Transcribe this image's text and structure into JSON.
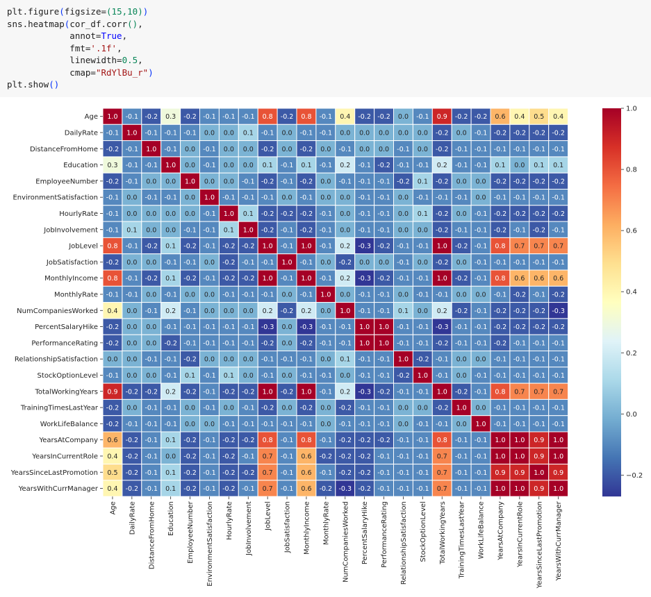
{
  "code": {
    "lines": [
      [
        {
          "t": "plt.figure"
        },
        {
          "t": "(",
          "c": "paren"
        },
        {
          "t": "figsize="
        },
        {
          "t": "(",
          "c": "num"
        },
        {
          "t": "15",
          "c": "num"
        },
        {
          "t": ",",
          "c": "num"
        },
        {
          "t": "10",
          "c": "num"
        },
        {
          "t": ")",
          "c": "num"
        },
        {
          "t": ")",
          "c": "paren"
        }
      ],
      [
        {
          "t": "sns.heatmap"
        },
        {
          "t": "(",
          "c": "paren"
        },
        {
          "t": "cor_df.corr"
        },
        {
          "t": "()",
          "c": "num"
        },
        {
          "t": ","
        }
      ],
      [
        {
          "t": "            annot="
        },
        {
          "t": "True",
          "c": "kw"
        },
        {
          "t": ","
        }
      ],
      [
        {
          "t": "            fmt="
        },
        {
          "t": "'.1f'",
          "c": "str"
        },
        {
          "t": ","
        }
      ],
      [
        {
          "t": "            linewidth="
        },
        {
          "t": "0.5",
          "c": "num"
        },
        {
          "t": ","
        }
      ],
      [
        {
          "t": "            cmap="
        },
        {
          "t": "\"RdYlBu_r\"",
          "c": "str"
        },
        {
          "t": ")",
          "c": "paren"
        }
      ],
      [
        {
          "t": "plt.show"
        },
        {
          "t": "()",
          "c": "paren"
        }
      ]
    ]
  },
  "chart_data": {
    "type": "heatmap",
    "title": "",
    "cmap": "RdYlBu_r",
    "annot_format": ".1f",
    "labels": [
      "Age",
      "DailyRate",
      "DistanceFromHome",
      "Education",
      "EmployeeNumber",
      "EnvironmentSatisfaction",
      "HourlyRate",
      "JobInvolvement",
      "JobLevel",
      "JobSatisfaction",
      "MonthlyIncome",
      "MonthlyRate",
      "NumCompaniesWorked",
      "PercentSalaryHike",
      "PerformanceRating",
      "RelationshipSatisfaction",
      "StockOptionLevel",
      "TotalWorkingYears",
      "TrainingTimesLastYear",
      "WorkLifeBalance",
      "YearsAtCompany",
      "YearsInCurrentRole",
      "YearsSinceLastPromotion",
      "YearsWithCurrManager"
    ],
    "values": [
      [
        1.0,
        -0.1,
        -0.2,
        0.3,
        -0.2,
        -0.1,
        -0.1,
        -0.1,
        0.8,
        -0.2,
        0.8,
        -0.1,
        0.4,
        -0.2,
        -0.2,
        -0.0,
        -0.1,
        0.9,
        -0.2,
        -0.2,
        0.6,
        0.4,
        0.5,
        0.4
      ],
      [
        -0.1,
        1.0,
        -0.1,
        -0.1,
        -0.1,
        -0.0,
        0.0,
        0.1,
        -0.1,
        0.0,
        -0.1,
        -0.1,
        0.0,
        -0.0,
        -0.0,
        -0.0,
        0.0,
        -0.2,
        -0.0,
        -0.1,
        -0.2,
        -0.2,
        -0.2,
        -0.2
      ],
      [
        -0.2,
        -0.1,
        1.0,
        -0.1,
        0.0,
        -0.1,
        0.0,
        -0.0,
        -0.2,
        -0.0,
        -0.2,
        0.0,
        -0.1,
        0.0,
        0.0,
        -0.1,
        0.0,
        -0.2,
        -0.1,
        -0.1,
        -0.1,
        -0.1,
        -0.1,
        -0.1
      ],
      [
        0.3,
        -0.1,
        -0.1,
        1.0,
        0.0,
        -0.1,
        -0.0,
        0.0,
        0.1,
        -0.1,
        0.1,
        -0.1,
        0.2,
        -0.1,
        -0.2,
        -0.1,
        -0.1,
        0.2,
        -0.1,
        -0.1,
        0.1,
        0.0,
        0.1,
        0.1
      ],
      [
        -0.2,
        -0.1,
        0.0,
        0.0,
        1.0,
        -0.0,
        0.0,
        -0.1,
        -0.2,
        -0.1,
        -0.2,
        -0.0,
        -0.1,
        -0.1,
        -0.1,
        -0.2,
        0.1,
        -0.2,
        0.0,
        -0.0,
        -0.2,
        -0.2,
        -0.2,
        -0.2
      ],
      [
        -0.1,
        -0.0,
        -0.1,
        -0.1,
        -0.0,
        1.0,
        -0.1,
        -0.1,
        -0.1,
        -0.0,
        -0.1,
        0.0,
        -0.0,
        -0.1,
        -0.1,
        -0.0,
        -0.1,
        -0.1,
        -0.1,
        0.0,
        -0.1,
        -0.1,
        -0.1,
        -0.1
      ],
      [
        -0.1,
        0.0,
        0.0,
        -0.0,
        0.0,
        -0.1,
        1.0,
        0.1,
        -0.2,
        -0.2,
        -0.2,
        -0.1,
        -0.0,
        -0.1,
        -0.1,
        -0.0,
        0.1,
        -0.2,
        -0.0,
        -0.1,
        -0.2,
        -0.2,
        -0.2,
        -0.2
      ],
      [
        -0.1,
        0.1,
        -0.0,
        0.0,
        -0.1,
        -0.1,
        0.1,
        1.0,
        -0.2,
        -0.1,
        -0.2,
        -0.1,
        -0.0,
        -0.1,
        -0.1,
        0.0,
        -0.0,
        -0.2,
        -0.1,
        -0.1,
        -0.2,
        -0.1,
        -0.2,
        -0.1
      ],
      [
        0.8,
        -0.1,
        -0.2,
        0.1,
        -0.2,
        -0.1,
        -0.2,
        -0.2,
        1.0,
        -0.1,
        1.0,
        -0.1,
        0.2,
        -0.3,
        -0.2,
        -0.1,
        -0.1,
        1.0,
        -0.2,
        -0.1,
        0.8,
        0.7,
        0.7,
        0.7
      ],
      [
        -0.2,
        0.0,
        -0.0,
        -0.1,
        -0.1,
        -0.0,
        -0.2,
        -0.1,
        -0.1,
        1.0,
        -0.1,
        -0.0,
        -0.2,
        -0.0,
        -0.0,
        -0.1,
        -0.0,
        -0.2,
        -0.0,
        -0.1,
        -0.1,
        -0.1,
        -0.1,
        -0.1
      ],
      [
        0.8,
        -0.1,
        -0.2,
        0.1,
        -0.2,
        -0.1,
        -0.2,
        -0.2,
        1.0,
        -0.1,
        1.0,
        -0.1,
        0.2,
        -0.3,
        -0.2,
        -0.1,
        -0.1,
        1.0,
        -0.2,
        -0.1,
        0.8,
        0.6,
        0.6,
        0.6
      ],
      [
        -0.1,
        -0.1,
        0.0,
        -0.1,
        -0.0,
        0.0,
        -0.1,
        -0.1,
        -0.1,
        -0.0,
        -0.1,
        1.0,
        -0.0,
        -0.1,
        -0.1,
        -0.0,
        -0.1,
        -0.1,
        -0.0,
        -0.0,
        -0.1,
        -0.2,
        -0.1,
        -0.2
      ],
      [
        0.4,
        0.0,
        -0.1,
        0.2,
        -0.1,
        -0.0,
        -0.0,
        -0.0,
        0.2,
        -0.2,
        0.2,
        -0.0,
        1.0,
        -0.1,
        -0.1,
        0.1,
        -0.0,
        0.2,
        -0.2,
        -0.1,
        -0.2,
        -0.2,
        -0.2,
        -0.3
      ],
      [
        -0.2,
        -0.0,
        0.0,
        -0.1,
        -0.1,
        -0.1,
        -0.1,
        -0.1,
        -0.3,
        -0.0,
        -0.3,
        -0.1,
        -0.1,
        1.0,
        1.0,
        -0.1,
        -0.1,
        -0.3,
        -0.1,
        -0.1,
        -0.2,
        -0.2,
        -0.2,
        -0.2
      ],
      [
        -0.2,
        -0.0,
        0.0,
        -0.2,
        -0.1,
        -0.1,
        -0.1,
        -0.1,
        -0.2,
        -0.0,
        -0.2,
        -0.1,
        -0.1,
        1.0,
        1.0,
        -0.1,
        -0.1,
        -0.2,
        -0.1,
        -0.1,
        -0.2,
        -0.1,
        -0.1,
        -0.1
      ],
      [
        -0.0,
        -0.0,
        -0.1,
        -0.1,
        -0.2,
        -0.0,
        -0.0,
        0.0,
        -0.1,
        -0.1,
        -0.1,
        -0.0,
        0.1,
        -0.1,
        -0.1,
        1.0,
        -0.2,
        -0.1,
        -0.0,
        -0.0,
        -0.1,
        -0.1,
        -0.1,
        -0.1
      ],
      [
        -0.1,
        0.0,
        0.0,
        -0.1,
        0.1,
        -0.1,
        0.1,
        -0.0,
        -0.1,
        -0.0,
        -0.1,
        -0.1,
        -0.0,
        -0.1,
        -0.1,
        -0.2,
        1.0,
        -0.1,
        -0.0,
        -0.1,
        -0.1,
        -0.1,
        -0.1,
        -0.1
      ],
      [
        0.9,
        -0.2,
        -0.2,
        0.2,
        -0.2,
        -0.1,
        -0.2,
        -0.2,
        1.0,
        -0.2,
        1.0,
        -0.1,
        0.2,
        -0.3,
        -0.2,
        -0.1,
        -0.1,
        1.0,
        -0.2,
        -0.1,
        0.8,
        0.7,
        0.7,
        0.7
      ],
      [
        -0.2,
        -0.0,
        -0.1,
        -0.1,
        0.0,
        -0.1,
        -0.0,
        -0.1,
        -0.2,
        -0.0,
        -0.2,
        -0.0,
        -0.2,
        -0.1,
        -0.1,
        -0.0,
        -0.0,
        -0.2,
        1.0,
        0.0,
        -0.1,
        -0.1,
        -0.1,
        -0.1
      ],
      [
        -0.2,
        -0.1,
        -0.1,
        -0.1,
        -0.0,
        0.0,
        -0.1,
        -0.1,
        -0.1,
        -0.1,
        -0.1,
        -0.0,
        -0.1,
        -0.1,
        -0.1,
        -0.0,
        -0.1,
        -0.1,
        0.0,
        1.0,
        -0.1,
        -0.1,
        -0.1,
        -0.1
      ],
      [
        0.6,
        -0.2,
        -0.1,
        0.1,
        -0.2,
        -0.1,
        -0.2,
        -0.2,
        0.8,
        -0.1,
        0.8,
        -0.1,
        -0.2,
        -0.2,
        -0.2,
        -0.1,
        -0.1,
        0.8,
        -0.1,
        -0.1,
        1.0,
        1.0,
        0.9,
        1.0
      ],
      [
        0.4,
        -0.2,
        -0.1,
        0.0,
        -0.2,
        -0.1,
        -0.2,
        -0.1,
        0.7,
        -0.1,
        0.6,
        -0.2,
        -0.2,
        -0.2,
        -0.1,
        -0.1,
        -0.1,
        0.7,
        -0.1,
        -0.1,
        1.0,
        1.0,
        0.9,
        1.0
      ],
      [
        0.5,
        -0.2,
        -0.1,
        0.1,
        -0.2,
        -0.1,
        -0.2,
        -0.2,
        0.7,
        -0.1,
        0.6,
        -0.1,
        -0.2,
        -0.2,
        -0.1,
        -0.1,
        -0.1,
        0.7,
        -0.1,
        -0.1,
        0.9,
        0.9,
        1.0,
        0.9
      ],
      [
        0.4,
        -0.2,
        -0.1,
        0.1,
        -0.2,
        -0.1,
        -0.2,
        -0.1,
        0.7,
        -0.1,
        0.6,
        -0.2,
        -0.3,
        -0.2,
        -0.1,
        -0.1,
        -0.1,
        0.7,
        -0.1,
        -0.1,
        1.0,
        1.0,
        0.9,
        1.0
      ]
    ],
    "colorbar": {
      "range": [
        -0.27,
        1.0
      ],
      "ticks": [
        1.0,
        0.8,
        0.6,
        0.4,
        0.2,
        0.0,
        -0.2
      ],
      "tick_labels": [
        "1.0",
        "0.8",
        "0.6",
        "0.4",
        "0.2",
        "0.0",
        "−0.2"
      ]
    },
    "cmap_stops": [
      "#313695",
      "#4575b4",
      "#74add1",
      "#abd9e9",
      "#e0f3f8",
      "#ffffbf",
      "#fee090",
      "#fdae61",
      "#f46d43",
      "#d73027",
      "#a50026"
    ]
  }
}
